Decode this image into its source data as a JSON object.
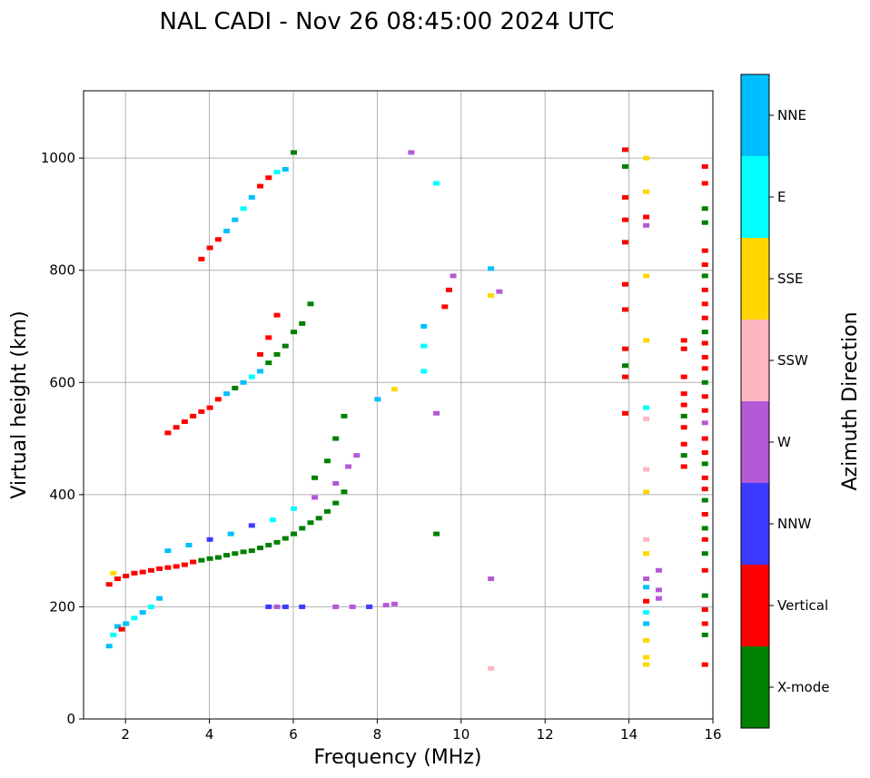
{
  "chart_data": {
    "type": "scatter",
    "title": "NAL CADI - Nov 26 08:45:00 2024 UTC",
    "xlabel": "Frequency (MHz)",
    "ylabel": "Virtual height (km)",
    "xlim": [
      1,
      16
    ],
    "ylim": [
      0,
      1120
    ],
    "xticks": [
      "2",
      "4",
      "6",
      "8",
      "10",
      "12",
      "14",
      "16"
    ],
    "yticks": [
      "0",
      "200",
      "400",
      "600",
      "800",
      "1000"
    ],
    "grid": true,
    "colorbar": {
      "label": "Azimuth Direction",
      "categories": [
        "X-mode",
        "Vertical",
        "NNW",
        "W",
        "SSW",
        "SSE",
        "E",
        "NNE"
      ],
      "colors": [
        "#008000",
        "#ff0000",
        "#3b3bff",
        "#b45ad6",
        "#ffb6c1",
        "#ffd700",
        "#00ffff",
        "#00bfff"
      ]
    },
    "points": [
      {
        "x": 1.6,
        "y": 130,
        "dir": "NNE"
      },
      {
        "x": 1.7,
        "y": 150,
        "dir": "E"
      },
      {
        "x": 1.8,
        "y": 165,
        "dir": "NNE"
      },
      {
        "x": 1.9,
        "y": 160,
        "dir": "Vertical"
      },
      {
        "x": 2.0,
        "y": 170,
        "dir": "NNE"
      },
      {
        "x": 2.2,
        "y": 180,
        "dir": "E"
      },
      {
        "x": 2.4,
        "y": 190,
        "dir": "NNE"
      },
      {
        "x": 2.6,
        "y": 200,
        "dir": "E"
      },
      {
        "x": 2.8,
        "y": 215,
        "dir": "NNE"
      },
      {
        "x": 1.6,
        "y": 240,
        "dir": "Vertical"
      },
      {
        "x": 1.7,
        "y": 260,
        "dir": "SSE"
      },
      {
        "x": 1.8,
        "y": 250,
        "dir": "Vertical"
      },
      {
        "x": 2.0,
        "y": 255,
        "dir": "Vertical"
      },
      {
        "x": 2.2,
        "y": 260,
        "dir": "Vertical"
      },
      {
        "x": 2.4,
        "y": 262,
        "dir": "Vertical"
      },
      {
        "x": 2.6,
        "y": 265,
        "dir": "Vertical"
      },
      {
        "x": 2.8,
        "y": 268,
        "dir": "Vertical"
      },
      {
        "x": 3.0,
        "y": 270,
        "dir": "Vertical"
      },
      {
        "x": 3.2,
        "y": 272,
        "dir": "Vertical"
      },
      {
        "x": 3.4,
        "y": 275,
        "dir": "Vertical"
      },
      {
        "x": 3.6,
        "y": 280,
        "dir": "Vertical"
      },
      {
        "x": 3.8,
        "y": 283,
        "dir": "X-mode"
      },
      {
        "x": 4.0,
        "y": 286,
        "dir": "X-mode"
      },
      {
        "x": 4.2,
        "y": 288,
        "dir": "X-mode"
      },
      {
        "x": 4.4,
        "y": 292,
        "dir": "X-mode"
      },
      {
        "x": 4.6,
        "y": 295,
        "dir": "X-mode"
      },
      {
        "x": 4.8,
        "y": 298,
        "dir": "X-mode"
      },
      {
        "x": 5.0,
        "y": 300,
        "dir": "X-mode"
      },
      {
        "x": 5.2,
        "y": 305,
        "dir": "X-mode"
      },
      {
        "x": 5.4,
        "y": 310,
        "dir": "X-mode"
      },
      {
        "x": 5.6,
        "y": 315,
        "dir": "X-mode"
      },
      {
        "x": 5.8,
        "y": 322,
        "dir": "X-mode"
      },
      {
        "x": 6.0,
        "y": 330,
        "dir": "X-mode"
      },
      {
        "x": 6.2,
        "y": 340,
        "dir": "X-mode"
      },
      {
        "x": 6.4,
        "y": 350,
        "dir": "X-mode"
      },
      {
        "x": 6.6,
        "y": 358,
        "dir": "X-mode"
      },
      {
        "x": 6.8,
        "y": 370,
        "dir": "X-mode"
      },
      {
        "x": 7.0,
        "y": 385,
        "dir": "X-mode"
      },
      {
        "x": 7.2,
        "y": 405,
        "dir": "X-mode"
      },
      {
        "x": 3.0,
        "y": 300,
        "dir": "NNE"
      },
      {
        "x": 3.5,
        "y": 310,
        "dir": "NNE"
      },
      {
        "x": 4.0,
        "y": 320,
        "dir": "NNW"
      },
      {
        "x": 4.5,
        "y": 330,
        "dir": "NNE"
      },
      {
        "x": 5.0,
        "y": 345,
        "dir": "NNW"
      },
      {
        "x": 5.5,
        "y": 355,
        "dir": "E"
      },
      {
        "x": 6.0,
        "y": 375,
        "dir": "E"
      },
      {
        "x": 6.5,
        "y": 395,
        "dir": "W"
      },
      {
        "x": 7.0,
        "y": 420,
        "dir": "W"
      },
      {
        "x": 7.3,
        "y": 450,
        "dir": "W"
      },
      {
        "x": 7.5,
        "y": 470,
        "dir": "W"
      },
      {
        "x": 6.8,
        "y": 460,
        "dir": "X-mode"
      },
      {
        "x": 7.0,
        "y": 500,
        "dir": "X-mode"
      },
      {
        "x": 7.2,
        "y": 540,
        "dir": "X-mode"
      },
      {
        "x": 6.5,
        "y": 430,
        "dir": "X-mode"
      },
      {
        "x": 3.0,
        "y": 510,
        "dir": "Vertical"
      },
      {
        "x": 3.2,
        "y": 520,
        "dir": "Vertical"
      },
      {
        "x": 3.4,
        "y": 530,
        "dir": "Vertical"
      },
      {
        "x": 3.6,
        "y": 540,
        "dir": "Vertical"
      },
      {
        "x": 3.8,
        "y": 548,
        "dir": "Vertical"
      },
      {
        "x": 4.0,
        "y": 555,
        "dir": "Vertical"
      },
      {
        "x": 4.2,
        "y": 570,
        "dir": "Vertical"
      },
      {
        "x": 4.4,
        "y": 580,
        "dir": "NNE"
      },
      {
        "x": 4.6,
        "y": 590,
        "dir": "X-mode"
      },
      {
        "x": 4.8,
        "y": 600,
        "dir": "NNE"
      },
      {
        "x": 5.0,
        "y": 610,
        "dir": "E"
      },
      {
        "x": 5.2,
        "y": 620,
        "dir": "NNE"
      },
      {
        "x": 5.4,
        "y": 635,
        "dir": "X-mode"
      },
      {
        "x": 5.6,
        "y": 650,
        "dir": "X-mode"
      },
      {
        "x": 5.8,
        "y": 665,
        "dir": "X-mode"
      },
      {
        "x": 6.0,
        "y": 690,
        "dir": "X-mode"
      },
      {
        "x": 6.2,
        "y": 705,
        "dir": "X-mode"
      },
      {
        "x": 6.4,
        "y": 740,
        "dir": "X-mode"
      },
      {
        "x": 5.2,
        "y": 650,
        "dir": "Vertical"
      },
      {
        "x": 5.4,
        "y": 680,
        "dir": "Vertical"
      },
      {
        "x": 5.6,
        "y": 720,
        "dir": "Vertical"
      },
      {
        "x": 3.8,
        "y": 820,
        "dir": "Vertical"
      },
      {
        "x": 4.0,
        "y": 840,
        "dir": "Vertical"
      },
      {
        "x": 4.2,
        "y": 855,
        "dir": "Vertical"
      },
      {
        "x": 4.4,
        "y": 870,
        "dir": "NNE"
      },
      {
        "x": 4.6,
        "y": 890,
        "dir": "NNE"
      },
      {
        "x": 4.8,
        "y": 910,
        "dir": "E"
      },
      {
        "x": 5.0,
        "y": 930,
        "dir": "NNE"
      },
      {
        "x": 5.2,
        "y": 950,
        "dir": "Vertical"
      },
      {
        "x": 5.4,
        "y": 965,
        "dir": "Vertical"
      },
      {
        "x": 5.6,
        "y": 975,
        "dir": "E"
      },
      {
        "x": 5.8,
        "y": 980,
        "dir": "NNE"
      },
      {
        "x": 6.0,
        "y": 1010,
        "dir": "X-mode"
      },
      {
        "x": 5.4,
        "y": 200,
        "dir": "NNW"
      },
      {
        "x": 5.6,
        "y": 200,
        "dir": "W"
      },
      {
        "x": 5.8,
        "y": 200,
        "dir": "NNW"
      },
      {
        "x": 6.2,
        "y": 200,
        "dir": "NNW"
      },
      {
        "x": 7.0,
        "y": 200,
        "dir": "W"
      },
      {
        "x": 7.4,
        "y": 200,
        "dir": "W"
      },
      {
        "x": 7.8,
        "y": 200,
        "dir": "NNW"
      },
      {
        "x": 8.2,
        "y": 203,
        "dir": "W"
      },
      {
        "x": 8.4,
        "y": 205,
        "dir": "W"
      },
      {
        "x": 8.0,
        "y": 570,
        "dir": "NNE"
      },
      {
        "x": 8.4,
        "y": 588,
        "dir": "SSE"
      },
      {
        "x": 9.1,
        "y": 620,
        "dir": "E"
      },
      {
        "x": 9.1,
        "y": 665,
        "dir": "E"
      },
      {
        "x": 9.1,
        "y": 700,
        "dir": "NNE"
      },
      {
        "x": 9.4,
        "y": 545,
        "dir": "W"
      },
      {
        "x": 9.4,
        "y": 330,
        "dir": "X-mode"
      },
      {
        "x": 9.4,
        "y": 955,
        "dir": "E"
      },
      {
        "x": 8.8,
        "y": 1010,
        "dir": "W"
      },
      {
        "x": 9.6,
        "y": 735,
        "dir": "Vertical"
      },
      {
        "x": 9.7,
        "y": 765,
        "dir": "Vertical"
      },
      {
        "x": 9.8,
        "y": 790,
        "dir": "W"
      },
      {
        "x": 10.7,
        "y": 803,
        "dir": "NNE"
      },
      {
        "x": 10.7,
        "y": 755,
        "dir": "SSE"
      },
      {
        "x": 10.9,
        "y": 762,
        "dir": "W"
      },
      {
        "x": 10.7,
        "y": 250,
        "dir": "W"
      },
      {
        "x": 10.7,
        "y": 90,
        "dir": "SSW"
      },
      {
        "x": 13.9,
        "y": 1015,
        "dir": "Vertical"
      },
      {
        "x": 13.9,
        "y": 985,
        "dir": "X-mode"
      },
      {
        "x": 13.9,
        "y": 930,
        "dir": "Vertical"
      },
      {
        "x": 13.9,
        "y": 890,
        "dir": "Vertical"
      },
      {
        "x": 13.9,
        "y": 850,
        "dir": "Vertical"
      },
      {
        "x": 13.9,
        "y": 775,
        "dir": "Vertical"
      },
      {
        "x": 13.9,
        "y": 730,
        "dir": "Vertical"
      },
      {
        "x": 13.9,
        "y": 660,
        "dir": "Vertical"
      },
      {
        "x": 13.9,
        "y": 630,
        "dir": "X-mode"
      },
      {
        "x": 13.9,
        "y": 610,
        "dir": "Vertical"
      },
      {
        "x": 13.9,
        "y": 545,
        "dir": "Vertical"
      },
      {
        "x": 14.4,
        "y": 1000,
        "dir": "SSE"
      },
      {
        "x": 14.4,
        "y": 940,
        "dir": "SSE"
      },
      {
        "x": 14.4,
        "y": 895,
        "dir": "Vertical"
      },
      {
        "x": 14.4,
        "y": 880,
        "dir": "W"
      },
      {
        "x": 14.4,
        "y": 790,
        "dir": "SSE"
      },
      {
        "x": 14.4,
        "y": 675,
        "dir": "SSE"
      },
      {
        "x": 14.4,
        "y": 555,
        "dir": "E"
      },
      {
        "x": 14.4,
        "y": 535,
        "dir": "SSW"
      },
      {
        "x": 14.4,
        "y": 445,
        "dir": "SSW"
      },
      {
        "x": 14.4,
        "y": 405,
        "dir": "SSE"
      },
      {
        "x": 14.4,
        "y": 320,
        "dir": "SSW"
      },
      {
        "x": 14.4,
        "y": 295,
        "dir": "SSE"
      },
      {
        "x": 14.4,
        "y": 250,
        "dir": "W"
      },
      {
        "x": 14.4,
        "y": 235,
        "dir": "NNE"
      },
      {
        "x": 14.4,
        "y": 210,
        "dir": "Vertical"
      },
      {
        "x": 14.4,
        "y": 190,
        "dir": "E"
      },
      {
        "x": 14.4,
        "y": 170,
        "dir": "NNE"
      },
      {
        "x": 14.4,
        "y": 140,
        "dir": "SSE"
      },
      {
        "x": 14.4,
        "y": 110,
        "dir": "SSE"
      },
      {
        "x": 14.4,
        "y": 97,
        "dir": "SSE"
      },
      {
        "x": 14.7,
        "y": 265,
        "dir": "W"
      },
      {
        "x": 14.7,
        "y": 230,
        "dir": "W"
      },
      {
        "x": 14.7,
        "y": 215,
        "dir": "W"
      },
      {
        "x": 15.3,
        "y": 675,
        "dir": "Vertical"
      },
      {
        "x": 15.3,
        "y": 660,
        "dir": "Vertical"
      },
      {
        "x": 15.3,
        "y": 610,
        "dir": "Vertical"
      },
      {
        "x": 15.3,
        "y": 580,
        "dir": "Vertical"
      },
      {
        "x": 15.3,
        "y": 560,
        "dir": "Vertical"
      },
      {
        "x": 15.3,
        "y": 540,
        "dir": "X-mode"
      },
      {
        "x": 15.3,
        "y": 520,
        "dir": "Vertical"
      },
      {
        "x": 15.3,
        "y": 490,
        "dir": "Vertical"
      },
      {
        "x": 15.3,
        "y": 470,
        "dir": "X-mode"
      },
      {
        "x": 15.3,
        "y": 450,
        "dir": "Vertical"
      },
      {
        "x": 15.8,
        "y": 985,
        "dir": "Vertical"
      },
      {
        "x": 15.8,
        "y": 955,
        "dir": "Vertical"
      },
      {
        "x": 15.8,
        "y": 910,
        "dir": "X-mode"
      },
      {
        "x": 15.8,
        "y": 885,
        "dir": "X-mode"
      },
      {
        "x": 15.8,
        "y": 835,
        "dir": "Vertical"
      },
      {
        "x": 15.8,
        "y": 810,
        "dir": "Vertical"
      },
      {
        "x": 15.8,
        "y": 790,
        "dir": "X-mode"
      },
      {
        "x": 15.8,
        "y": 765,
        "dir": "Vertical"
      },
      {
        "x": 15.8,
        "y": 740,
        "dir": "Vertical"
      },
      {
        "x": 15.8,
        "y": 715,
        "dir": "Vertical"
      },
      {
        "x": 15.8,
        "y": 690,
        "dir": "X-mode"
      },
      {
        "x": 15.8,
        "y": 670,
        "dir": "Vertical"
      },
      {
        "x": 15.8,
        "y": 645,
        "dir": "Vertical"
      },
      {
        "x": 15.8,
        "y": 625,
        "dir": "Vertical"
      },
      {
        "x": 15.8,
        "y": 600,
        "dir": "X-mode"
      },
      {
        "x": 15.8,
        "y": 575,
        "dir": "Vertical"
      },
      {
        "x": 15.8,
        "y": 550,
        "dir": "Vertical"
      },
      {
        "x": 15.8,
        "y": 528,
        "dir": "W"
      },
      {
        "x": 15.8,
        "y": 500,
        "dir": "Vertical"
      },
      {
        "x": 15.8,
        "y": 475,
        "dir": "Vertical"
      },
      {
        "x": 15.8,
        "y": 455,
        "dir": "X-mode"
      },
      {
        "x": 15.8,
        "y": 430,
        "dir": "Vertical"
      },
      {
        "x": 15.8,
        "y": 410,
        "dir": "Vertical"
      },
      {
        "x": 15.8,
        "y": 390,
        "dir": "X-mode"
      },
      {
        "x": 15.8,
        "y": 365,
        "dir": "Vertical"
      },
      {
        "x": 15.8,
        "y": 340,
        "dir": "X-mode"
      },
      {
        "x": 15.8,
        "y": 320,
        "dir": "Vertical"
      },
      {
        "x": 15.8,
        "y": 295,
        "dir": "X-mode"
      },
      {
        "x": 15.8,
        "y": 265,
        "dir": "Vertical"
      },
      {
        "x": 15.8,
        "y": 220,
        "dir": "X-mode"
      },
      {
        "x": 15.8,
        "y": 195,
        "dir": "Vertical"
      },
      {
        "x": 15.8,
        "y": 170,
        "dir": "Vertical"
      },
      {
        "x": 15.8,
        "y": 150,
        "dir": "X-mode"
      },
      {
        "x": 15.8,
        "y": 97,
        "dir": "Vertical"
      }
    ]
  }
}
